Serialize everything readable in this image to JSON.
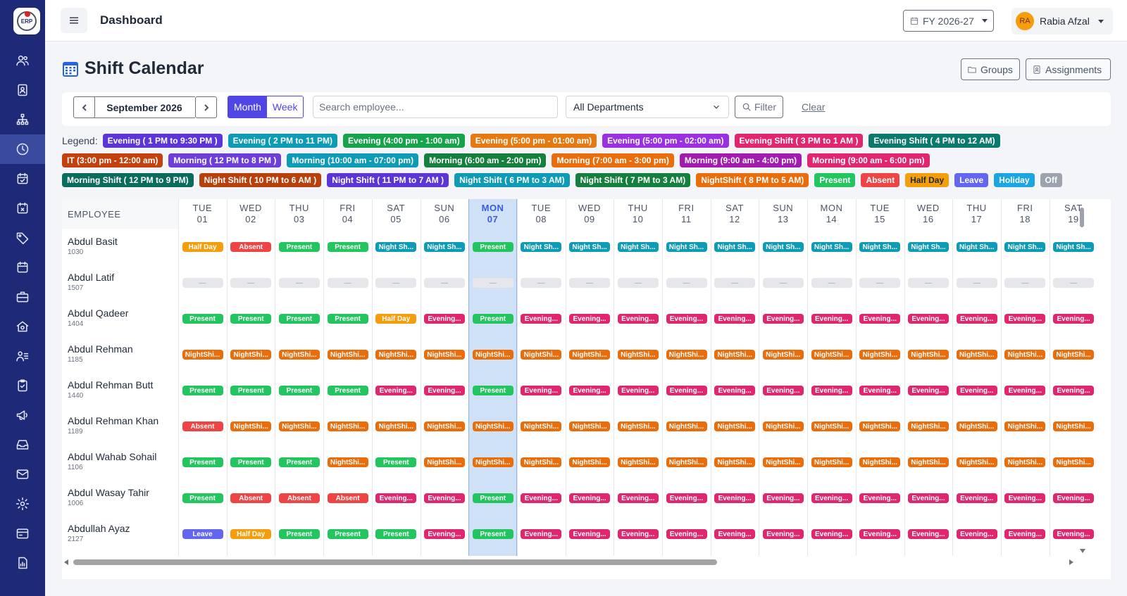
{
  "app": {
    "logo_text": "ERP"
  },
  "topbar": {
    "title": "Dashboard",
    "fy_label": "FY 2026-27",
    "user_initials": "RA",
    "user_name": "Rabia Afzal"
  },
  "page": {
    "title": "Shift Calendar",
    "groups_label": "Groups",
    "assignments_label": "Assignments"
  },
  "toolbar": {
    "month_label": "September 2026",
    "view_month": "Month",
    "view_week": "Week",
    "search_placeholder": "Search employee...",
    "department": "All Departments",
    "filter_label": "Filter",
    "clear_label": "Clear"
  },
  "legend": {
    "label": "Legend:",
    "rows": [
      [
        {
          "text": "Evening ( 1 PM to 9:30 PM )",
          "color": "#5b35d5"
        },
        {
          "text": "Evening ( 2 PM to 11 PM)",
          "color": "#0e9bb5"
        },
        {
          "text": "Evening (4:00 pm - 1:00 am)",
          "color": "#16a34a"
        },
        {
          "text": "Evening (5:00 pm - 01:00 am)",
          "color": "#e57a12"
        },
        {
          "text": "Evening (5:00 pm - 02:00 am)",
          "color": "#9b30e0"
        },
        {
          "text": "Evening Shift ( 3 PM to 1 AM )",
          "color": "#e0266e"
        },
        {
          "text": "Evening Shift ( 4 PM to 12 AM)",
          "color": "#0b7a6c"
        }
      ],
      [
        {
          "text": "IT (3:00 pm - 12:00 am)",
          "color": "#c2410c"
        },
        {
          "text": "Morning ( 12 PM to 8 PM )",
          "color": "#6d3fd8"
        },
        {
          "text": "Morning (10:00 am - 07:00 pm)",
          "color": "#0e9bb5"
        },
        {
          "text": "Morning (6:00 am - 2:00 pm)",
          "color": "#15803d"
        },
        {
          "text": "Morning (7:00 am - 3:00 pm)",
          "color": "#ea6d0c"
        },
        {
          "text": "Morning (9:00 am - 4:00 pm)",
          "color": "#a21caf"
        },
        {
          "text": "Morning (9:00 am - 6:00 pm)",
          "color": "#e0266e"
        }
      ],
      [
        {
          "text": "Morning Shift ( 12 PM to 9 PM)",
          "color": "#0b6b5e"
        },
        {
          "text": "Night Shift ( 10 PM to 6 AM )",
          "color": "#b8400a"
        },
        {
          "text": "Night Shift ( 11 PM to 7 AM )",
          "color": "#5b35d5"
        },
        {
          "text": "Night Shift ( 6 PM to 3 AM)",
          "color": "#0e9bb5"
        },
        {
          "text": "Night Shift ( 7 PM to 3 AM)",
          "color": "#15803d"
        },
        {
          "text": "NightShift ( 8 PM to 5 AM)",
          "color": "#ea6d0c"
        },
        {
          "text": "Present",
          "color": "#22c55e"
        },
        {
          "text": "Absent",
          "color": "#ef4444"
        },
        {
          "text": "Half Day",
          "color": "#f59e0b",
          "dark_text": true
        },
        {
          "text": "Leave",
          "color": "#6366f1"
        },
        {
          "text": "Holiday",
          "color": "#1aa6e0"
        },
        {
          "text": "Off",
          "color": "#9ca3af"
        }
      ]
    ]
  },
  "grid": {
    "employee_header": "EMPLOYEE",
    "today_index": 6,
    "days": [
      {
        "dow": "TUE",
        "date": "01"
      },
      {
        "dow": "WED",
        "date": "02"
      },
      {
        "dow": "THU",
        "date": "03"
      },
      {
        "dow": "FRI",
        "date": "04"
      },
      {
        "dow": "SAT",
        "date": "05"
      },
      {
        "dow": "SUN",
        "date": "06"
      },
      {
        "dow": "MON",
        "date": "07"
      },
      {
        "dow": "TUE",
        "date": "08"
      },
      {
        "dow": "WED",
        "date": "09"
      },
      {
        "dow": "THU",
        "date": "10"
      },
      {
        "dow": "FRI",
        "date": "11"
      },
      {
        "dow": "SAT",
        "date": "12"
      },
      {
        "dow": "SUN",
        "date": "13"
      },
      {
        "dow": "MON",
        "date": "14"
      },
      {
        "dow": "TUE",
        "date": "15"
      },
      {
        "dow": "WED",
        "date": "16"
      },
      {
        "dow": "THU",
        "date": "17"
      },
      {
        "dow": "FRI",
        "date": "18"
      },
      {
        "dow": "SAT",
        "date": "19"
      }
    ],
    "cell_kinds": {
      "P": {
        "label": "Present",
        "color": "#22c55e"
      },
      "A": {
        "label": "Absent",
        "color": "#ef4444"
      },
      "H": {
        "label": "Half Day",
        "color": "#f59e0b"
      },
      "L": {
        "label": "Leave",
        "color": "#6366f1"
      },
      "N": {
        "label": "Night Sh...",
        "color": "#0e9bb5"
      },
      "E": {
        "label": "Evening...",
        "color": "#e0266e"
      },
      "S": {
        "label": "NightShi...",
        "color": "#ea6d0c"
      },
      "-": {
        "label": "—",
        "color": "#e5e7eb"
      }
    },
    "employees": [
      {
        "name": "Abdul Basit",
        "id": "1030",
        "cells": [
          "H",
          "A",
          "P",
          "P",
          "N",
          "N",
          "P",
          "N",
          "N",
          "N",
          "N",
          "N",
          "N",
          "N",
          "N",
          "N",
          "N",
          "N",
          "N"
        ]
      },
      {
        "name": "Abdul Latif",
        "id": "1507",
        "cells": [
          "-",
          "-",
          "-",
          "-",
          "-",
          "-",
          "-",
          "-",
          "-",
          "-",
          "-",
          "-",
          "-",
          "-",
          "-",
          "-",
          "-",
          "-",
          "-"
        ]
      },
      {
        "name": "Abdul Qadeer",
        "id": "1404",
        "cells": [
          "P",
          "P",
          "P",
          "P",
          "H",
          "E",
          "P",
          "E",
          "E",
          "E",
          "E",
          "E",
          "E",
          "E",
          "E",
          "E",
          "E",
          "E",
          "E"
        ]
      },
      {
        "name": "Abdul Rehman",
        "id": "1185",
        "cells": [
          "S",
          "S",
          "S",
          "S",
          "S",
          "S",
          "S",
          "S",
          "S",
          "S",
          "S",
          "S",
          "S",
          "S",
          "S",
          "S",
          "S",
          "S",
          "S"
        ]
      },
      {
        "name": "Abdul Rehman Butt",
        "id": "1440",
        "cells": [
          "P",
          "P",
          "P",
          "P",
          "E",
          "E",
          "P",
          "E",
          "E",
          "E",
          "E",
          "E",
          "E",
          "E",
          "E",
          "E",
          "E",
          "E",
          "E"
        ]
      },
      {
        "name": "Abdul Rehman Khan",
        "id": "1189",
        "cells": [
          "A",
          "S",
          "S",
          "S",
          "S",
          "S",
          "S",
          "S",
          "S",
          "S",
          "S",
          "S",
          "S",
          "S",
          "S",
          "S",
          "S",
          "S",
          "S"
        ]
      },
      {
        "name": "Abdul Wahab Sohail",
        "id": "1106",
        "cells": [
          "P",
          "P",
          "P",
          "S",
          "P",
          "S",
          "S",
          "S",
          "S",
          "S",
          "S",
          "S",
          "S",
          "S",
          "S",
          "S",
          "S",
          "S",
          "S"
        ]
      },
      {
        "name": "Abdul Wasay Tahir",
        "id": "1006",
        "cells": [
          "P",
          "A",
          "A",
          "A",
          "E",
          "E",
          "P",
          "E",
          "E",
          "E",
          "E",
          "E",
          "E",
          "E",
          "E",
          "E",
          "E",
          "E",
          "E"
        ]
      },
      {
        "name": "Abdullah Ayaz",
        "id": "2127",
        "cells": [
          "L",
          "H",
          "P",
          "P",
          "P",
          "E",
          "P",
          "E",
          "E",
          "E",
          "E",
          "E",
          "E",
          "E",
          "E",
          "E",
          "E",
          "E",
          "E"
        ]
      }
    ]
  }
}
